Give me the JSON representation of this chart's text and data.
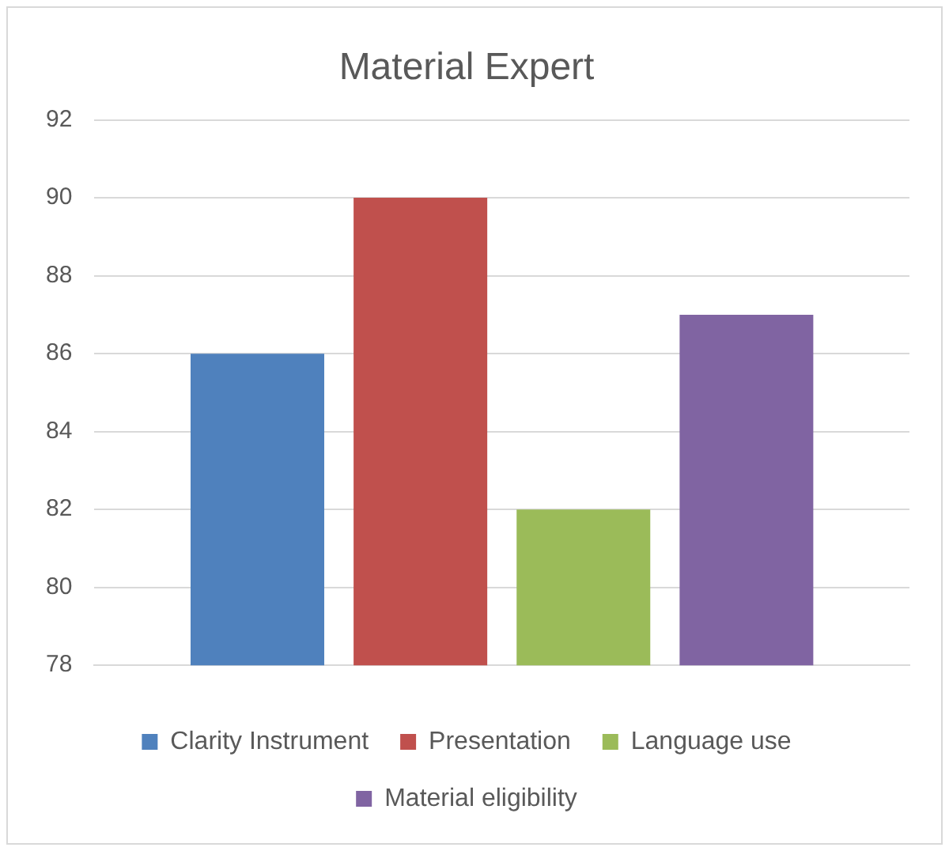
{
  "chart_data": {
    "type": "bar",
    "title": "Material Expert",
    "categories": [
      null
    ],
    "series": [
      {
        "name": "Clarity Instrument",
        "color": "#4f81bd",
        "values": [
          86
        ]
      },
      {
        "name": "Presentation",
        "color": "#c0504d",
        "values": [
          90
        ]
      },
      {
        "name": "Language use",
        "color": "#9bbb59",
        "values": [
          82
        ]
      },
      {
        "name": "Material eligibility",
        "color": "#8064a2",
        "values": [
          87
        ]
      }
    ],
    "ylim": [
      78,
      92
    ],
    "yticks": [
      78,
      80,
      82,
      84,
      86,
      88,
      90,
      92
    ],
    "grid": "y",
    "legend": "bottom"
  }
}
